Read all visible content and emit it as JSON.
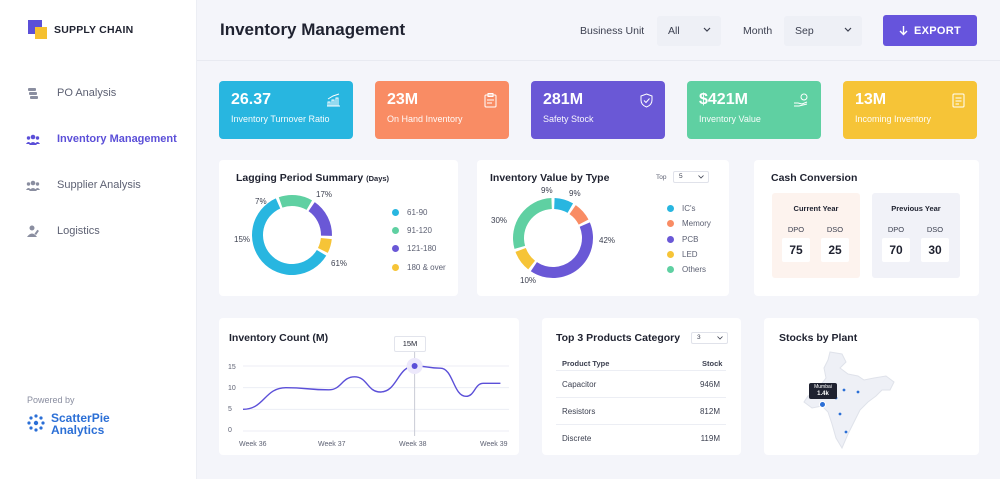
{
  "brand": "SUPPLY CHAIN",
  "sidebar": {
    "items": [
      {
        "label": "PO Analysis",
        "icon": "stack-icon"
      },
      {
        "label": "Inventory Management",
        "icon": "people-icon",
        "active": true
      },
      {
        "label": "Supplier Analysis",
        "icon": "people-icon"
      },
      {
        "label": "Logistics",
        "icon": "user-edit-icon"
      }
    ],
    "powered_by": "Powered by",
    "partner_line1": "ScatterPie",
    "partner_line2": "Analytics"
  },
  "header": {
    "title": "Inventory Management",
    "business_unit_label": "Business Unit",
    "business_unit_value": "All",
    "month_label": "Month",
    "month_value": "Sep",
    "export_label": "EXPORT"
  },
  "kpis": [
    {
      "value": "26.37",
      "label": "Inventory Turnover Ratio",
      "color": "#28b6e0"
    },
    {
      "value": "23M",
      "label": "On Hand Inventory",
      "color": "#f98c64"
    },
    {
      "value": "281M",
      "label": "Safety Stock",
      "color": "#6a58d6"
    },
    {
      "value": "$421M",
      "label": "Inventory Value",
      "color": "#5fd0a2"
    },
    {
      "value": "13M",
      "label": "Incoming Inventory",
      "color": "#f6c437"
    }
  ],
  "lagging": {
    "title": "Lagging Period Summary",
    "subtitle": "(Days)",
    "legend": [
      "61-90",
      "91-120",
      "121-180",
      "180 & over"
    ],
    "percents": [
      "17%",
      "7%",
      "15%",
      "61%"
    ]
  },
  "value_by_type": {
    "title": "Inventory Value by Type",
    "top_label": "Top",
    "top_value": "5",
    "legend": [
      "IC's",
      "Memory",
      "PCB",
      "LED",
      "Others"
    ],
    "percents": [
      "9%",
      "9%",
      "30%",
      "42%",
      "10%"
    ]
  },
  "cash_conversion": {
    "title": "Cash Conversion",
    "current": {
      "head": "Current Year",
      "dpo_label": "DPO",
      "dso_label": "DSO",
      "dpo": "75",
      "dso": "25"
    },
    "previous": {
      "head": "Previous Year",
      "dpo_label": "DPO",
      "dso_label": "DSO",
      "dpo": "70",
      "dso": "30"
    }
  },
  "inventory_count": {
    "title": "Inventory Count (M)",
    "tooltip": "15M"
  },
  "top_products": {
    "title": "Top 3 Products Category",
    "select_value": "3",
    "col1": "Product Type",
    "col2": "Stock",
    "rows": [
      {
        "type": "Capacitor",
        "stock": "946M"
      },
      {
        "type": "Resistors",
        "stock": "812M"
      },
      {
        "type": "Discrete",
        "stock": "119M"
      }
    ]
  },
  "stocks_by_plant": {
    "title": "Stocks by Plant",
    "marker_city": "Mumbai",
    "marker_value": "1.4k"
  },
  "chart_data": [
    {
      "type": "pie",
      "title": "Lagging Period Summary",
      "categories": [
        "61-90",
        "91-120",
        "121-180",
        "180 & over"
      ],
      "values": [
        61,
        15,
        17,
        7
      ],
      "colors": [
        "#28b6e0",
        "#5fd0a2",
        "#6a58d6",
        "#f6c437"
      ]
    },
    {
      "type": "pie",
      "title": "Inventory Value by Type",
      "categories": [
        "IC's",
        "Memory",
        "PCB",
        "LED",
        "Others"
      ],
      "values": [
        9,
        9,
        42,
        10,
        30
      ],
      "colors": [
        "#28b6e0",
        "#f98c64",
        "#6a58d6",
        "#f6c437",
        "#5fd0a2"
      ]
    },
    {
      "type": "line",
      "title": "Inventory Count (M)",
      "x": [
        36,
        36.5,
        37,
        37.3,
        37.6,
        38,
        38.3,
        38.6,
        38.8,
        39
      ],
      "y": [
        5,
        10,
        9.5,
        12.5,
        9,
        15,
        14.5,
        8,
        11,
        11
      ],
      "xticks": [
        "Week 36",
        "Week 37",
        "Week 38",
        "Week 39"
      ],
      "yticks": [
        "0",
        "5",
        "10",
        "15"
      ],
      "ylim": [
        0,
        15
      ],
      "color": "#5b4fd8"
    }
  ]
}
